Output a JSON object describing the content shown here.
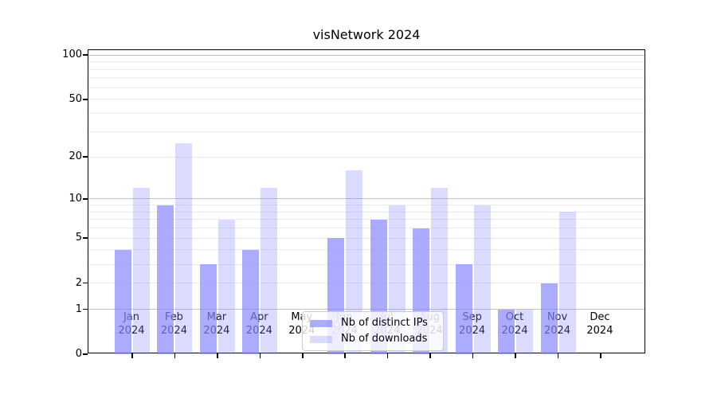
{
  "chart_data": {
    "type": "bar",
    "title": "visNetwork 2024",
    "categories": [
      "Jan",
      "Feb",
      "Mar",
      "Apr",
      "May",
      "Jun",
      "Jul",
      "Aug",
      "Sep",
      "Oct",
      "Nov",
      "Dec"
    ],
    "category_year": "2024",
    "series": [
      {
        "name": "Nb of distinct IPs",
        "values": [
          4,
          9,
          3,
          4,
          0,
          5,
          7,
          6,
          3,
          1,
          2,
          0
        ],
        "color": "rgba(136,136,255,0.70)"
      },
      {
        "name": "Nb of downloads",
        "values": [
          12,
          25,
          7,
          12,
          0,
          16,
          9,
          12,
          9,
          1,
          8,
          0
        ],
        "color": "rgba(136,136,255,0.30)"
      }
    ],
    "yscale": "log1p",
    "ylim": [
      0,
      108
    ],
    "yticks": [
      0,
      1,
      2,
      5,
      10,
      20,
      50,
      100
    ],
    "grid_minor_values": [
      2,
      3,
      4,
      5,
      6,
      7,
      8,
      9,
      20,
      30,
      40,
      50,
      60,
      70,
      80,
      90
    ],
    "grid_major_values": [
      1,
      10,
      100
    ],
    "grid_on": true,
    "legend_position": "lower center",
    "xlabel": "",
    "ylabel": ""
  },
  "legend": {
    "items": [
      {
        "label": "Nb of distinct IPs"
      },
      {
        "label": "Nb of downloads"
      }
    ]
  },
  "colors": {
    "bar_dark": "rgba(136,136,255,0.70)",
    "bar_light": "rgba(136,136,255,0.30)",
    "grid_minor": "#ebebeb",
    "grid_major": "#c2c2c2",
    "axis": "#000000",
    "legend_border": "#cccccc",
    "legend_bg": "rgba(255,255,255,0.8)"
  }
}
